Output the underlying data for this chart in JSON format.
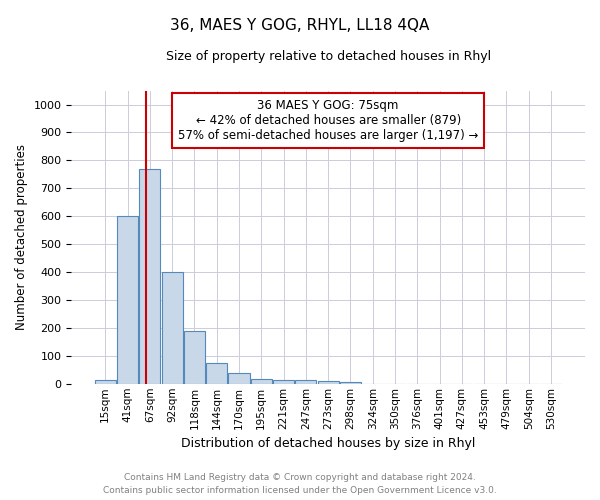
{
  "title": "36, MAES Y GOG, RHYL, LL18 4QA",
  "subtitle": "Size of property relative to detached houses in Rhyl",
  "xlabel": "Distribution of detached houses by size in Rhyl",
  "ylabel": "Number of detached properties",
  "bar_labels": [
    "15sqm",
    "41sqm",
    "67sqm",
    "92sqm",
    "118sqm",
    "144sqm",
    "170sqm",
    "195sqm",
    "221sqm",
    "247sqm",
    "273sqm",
    "298sqm",
    "324sqm",
    "350sqm",
    "376sqm",
    "401sqm",
    "427sqm",
    "453sqm",
    "479sqm",
    "504sqm",
    "530sqm"
  ],
  "bar_heights": [
    15,
    600,
    770,
    400,
    190,
    75,
    38,
    18,
    15,
    12,
    10,
    8,
    0,
    0,
    0,
    0,
    0,
    0,
    0,
    0,
    0
  ],
  "bar_color": "#c8d8e8",
  "bar_edge_color": "#5588bb",
  "ylim": [
    0,
    1050
  ],
  "yticks": [
    0,
    100,
    200,
    300,
    400,
    500,
    600,
    700,
    800,
    900,
    1000
  ],
  "property_line_color": "#cc0000",
  "annotation_text": "36 MAES Y GOG: 75sqm\n← 42% of detached houses are smaller (879)\n57% of semi-detached houses are larger (1,197) →",
  "annotation_box_color": "#cc0000",
  "footer_line1": "Contains HM Land Registry data © Crown copyright and database right 2024.",
  "footer_line2": "Contains public sector information licensed under the Open Government Licence v3.0.",
  "background_color": "#ffffff",
  "grid_color": "#ccccdd"
}
